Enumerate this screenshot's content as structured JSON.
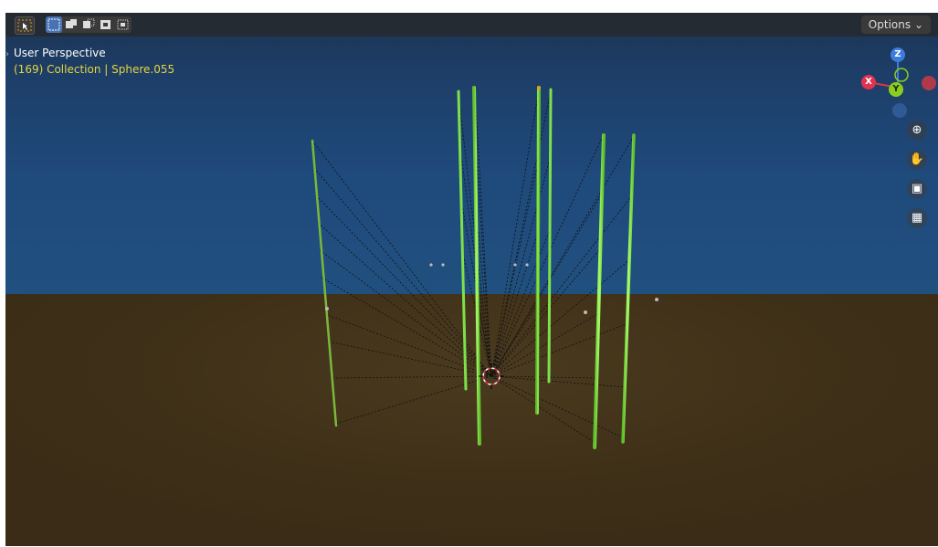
{
  "viewport": {
    "title": "User Perspective",
    "subtitle": "(169) Collection | Sphere.055",
    "colors": {
      "sky": "#20507f",
      "ground": "#3f3018",
      "selected_text": "#e6d53d",
      "rod": "#7ee04a",
      "rod_bright": "#9bff5a"
    }
  },
  "header": {
    "options_label": "Options",
    "select_tool_icon": "select-box-icon",
    "mode_icons": [
      "select-new-icon",
      "select-extend-icon",
      "select-subtract-icon",
      "select-invert-icon",
      "select-intersect-icon"
    ]
  },
  "gizmo": {
    "axes": [
      {
        "label": "Z",
        "color": "#3d7cde"
      },
      {
        "label": "X",
        "color": "#e0334f"
      },
      {
        "label": "Y",
        "color": "#8ace1d"
      }
    ]
  },
  "nav": {
    "icons": [
      "zoom-icon",
      "hand-icon",
      "camera-icon",
      "grid-icon"
    ]
  }
}
